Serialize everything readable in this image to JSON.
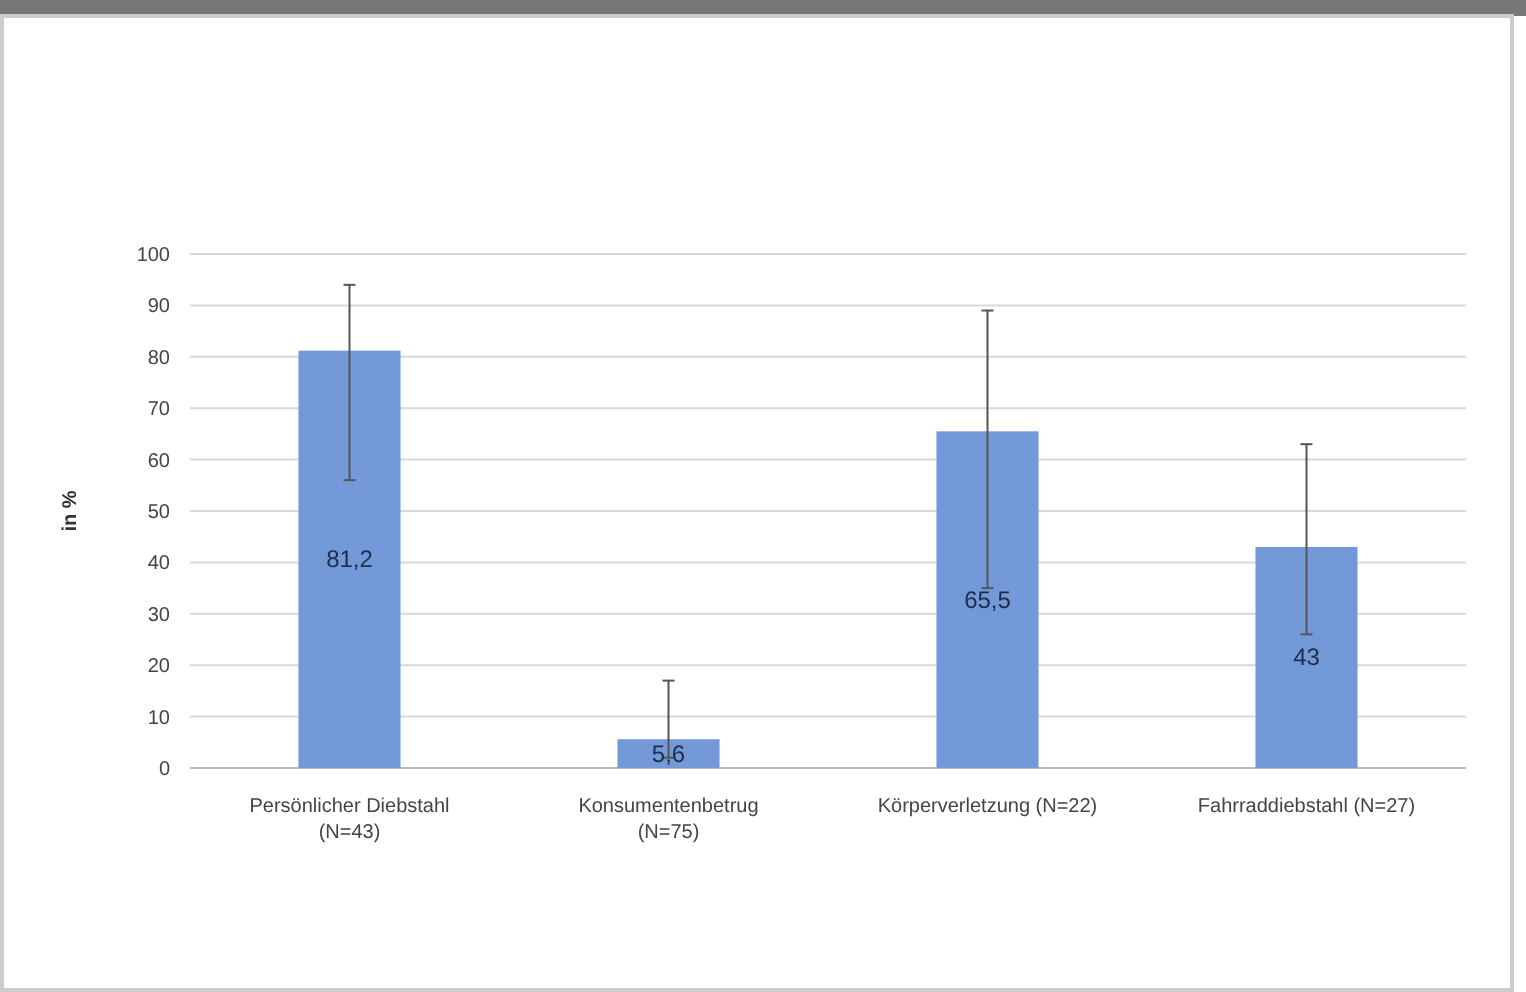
{
  "chart_data": {
    "type": "bar",
    "ylabel": "in %",
    "categories": [
      "Persönlicher Diebstahl\n(N=43)",
      "Konsumentenbetrug\n(N=75)",
      "Körperverletzung (N=22)",
      "Fahrraddiebstahl (N=27)"
    ],
    "values": [
      81.2,
      5.6,
      65.5,
      43
    ],
    "value_labels": [
      "81,2",
      "5,6",
      "65,5",
      "43"
    ],
    "errors": [
      [
        56,
        94
      ],
      [
        2,
        17
      ],
      [
        35,
        89
      ],
      [
        26,
        63
      ]
    ],
    "color": "#7399d8",
    "ylim": [
      0,
      100
    ],
    "yticks": [
      0,
      10,
      20,
      30,
      40,
      50,
      60,
      70,
      80,
      90,
      100
    ],
    "grid": "y"
  }
}
